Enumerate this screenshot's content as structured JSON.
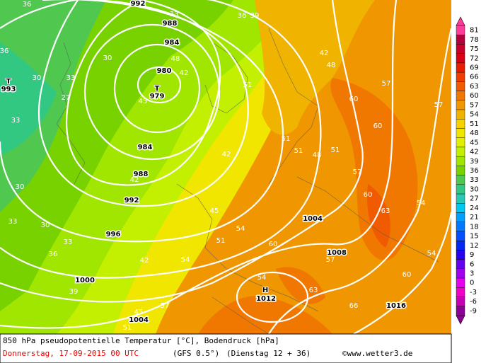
{
  "map": {
    "pressure_labels": [
      "992",
      "988",
      "984",
      "980",
      "979",
      "984",
      "988",
      "992",
      "996",
      "1000",
      "1004",
      "1004",
      "1008",
      "1012",
      "1016",
      "993"
    ],
    "symbols": [
      "T",
      "T",
      "H"
    ],
    "temperature_labels": [
      "36",
      "33",
      "36",
      "39",
      "36",
      "30",
      "30",
      "33",
      "27",
      "33",
      "42",
      "48",
      "45",
      "51",
      "48",
      "42",
      "57",
      "60",
      "57",
      "60",
      "51",
      "48",
      "51",
      "51",
      "54",
      "57",
      "60",
      "63",
      "42",
      "42",
      "45",
      "54",
      "51",
      "54",
      "42",
      "57",
      "63",
      "60",
      "57",
      "66",
      "54",
      "51",
      "45",
      "33",
      "30",
      "36",
      "39",
      "33",
      "30",
      "54",
      "60"
    ]
  },
  "legend": {
    "labels": [
      "81",
      "78",
      "75",
      "72",
      "69",
      "66",
      "63",
      "60",
      "57",
      "54",
      "51",
      "48",
      "45",
      "42",
      "39",
      "36",
      "33",
      "30",
      "27",
      "24",
      "21",
      "18",
      "15",
      "12",
      "9",
      "6",
      "3",
      "0",
      "-3",
      "-6",
      "-9"
    ],
    "colors": [
      "#ff3c9c",
      "#b4003c",
      "#c8002c",
      "#dc0014",
      "#e61e00",
      "#f03c00",
      "#f05a00",
      "#f07800",
      "#f09600",
      "#f0b400",
      "#f5d200",
      "#f0e600",
      "#e1f000",
      "#c3f000",
      "#a0e600",
      "#78d200",
      "#50c850",
      "#32c882",
      "#28c8b4",
      "#00c8f0",
      "#00a0ff",
      "#0078ff",
      "#0050ff",
      "#0028f0",
      "#2800f0",
      "#6400f0",
      "#a000f0",
      "#e600f0",
      "#f000c8",
      "#c800b4",
      "#8c0096"
    ]
  },
  "footer": {
    "line1": "850 hPa pseudopotentielle Temperatur [°C], Bodendruck [hPa]",
    "date": "Donnerstag, 17-09-2015  00 UTC",
    "model": "(GFS 0.5°)",
    "run": "(Dienstag 12 + 36)",
    "credit": "©www.wetter3.de"
  }
}
